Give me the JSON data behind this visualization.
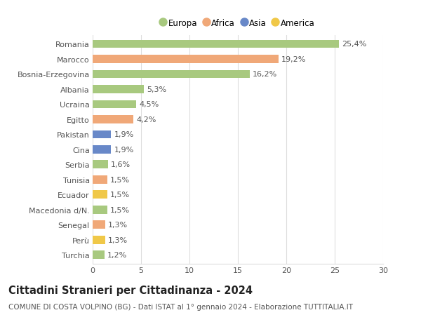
{
  "title": "Cittadini Stranieri per Cittadinanza - 2024",
  "subtitle": "COMUNE DI COSTA VOLPINO (BG) - Dati ISTAT al 1° gennaio 2024 - Elaborazione TUTTITALIA.IT",
  "categories": [
    "Romania",
    "Marocco",
    "Bosnia-Erzegovina",
    "Albania",
    "Ucraina",
    "Egitto",
    "Pakistan",
    "Cina",
    "Serbia",
    "Tunisia",
    "Ecuador",
    "Macedonia d/N.",
    "Senegal",
    "Perù",
    "Turchia"
  ],
  "values": [
    25.4,
    19.2,
    16.2,
    5.3,
    4.5,
    4.2,
    1.9,
    1.9,
    1.6,
    1.5,
    1.5,
    1.5,
    1.3,
    1.3,
    1.2
  ],
  "continents": [
    "Europa",
    "Africa",
    "Europa",
    "Europa",
    "Europa",
    "Africa",
    "Asia",
    "Asia",
    "Europa",
    "Africa",
    "America",
    "Europa",
    "Africa",
    "America",
    "Europa"
  ],
  "colors": {
    "Europa": "#a8c97f",
    "Africa": "#f0a878",
    "Asia": "#6888c8",
    "America": "#f0c848"
  },
  "legend_order": [
    "Europa",
    "Africa",
    "Asia",
    "America"
  ],
  "xlim": [
    0,
    30
  ],
  "xticks": [
    0,
    5,
    10,
    15,
    20,
    25,
    30
  ],
  "bar_height": 0.55,
  "background_color": "#ffffff",
  "grid_color": "#dddddd",
  "label_fontsize": 8,
  "tick_fontsize": 8,
  "title_fontsize": 10.5,
  "subtitle_fontsize": 7.5
}
